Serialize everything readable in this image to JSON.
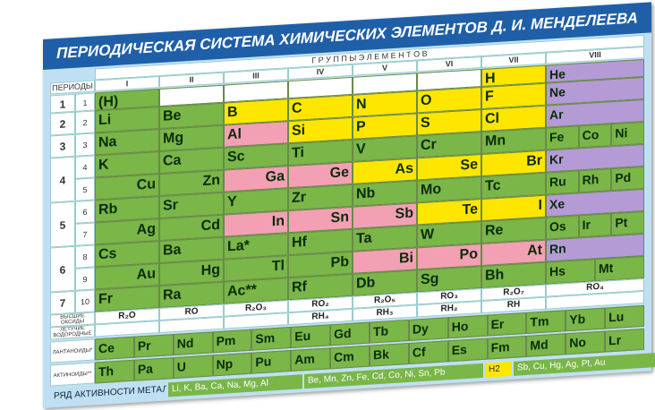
{
  "header": {
    "title": "ПЕРИОДИЧЕСКАЯ СИСТЕМА ХИМИЧЕСКИХ ЭЛЕМЕНТОВ Д. И. МЕНДЕЛЕЕВА",
    "groups_label": "Г Р У П П Ы   Э Л Е М Е Н Т О В",
    "periods_label": "ПЕРИОДЫ"
  },
  "groups": [
    "I",
    "II",
    "III",
    "IV",
    "V",
    "VI",
    "VII",
    "VIII"
  ],
  "periods": [
    "1",
    "2",
    "3",
    "4",
    "5",
    "6",
    "7"
  ],
  "rows": [
    {
      "number": "1",
      "cells": [
        "(H)",
        null,
        null,
        null,
        null,
        null,
        "H",
        [
          "He"
        ]
      ],
      "colors": [
        "#7ab648",
        null,
        null,
        null,
        null,
        null,
        "#ffe600",
        "#b49bd6"
      ]
    },
    {
      "number": "2",
      "cells": [
        "Li",
        "Be",
        "B",
        "C",
        "N",
        "O",
        "F",
        [
          "Ne"
        ]
      ],
      "colors": [
        "#7ab648",
        "#7ab648",
        "#ffe600",
        "#ffe600",
        "#ffe600",
        "#ffe600",
        "#ffe600",
        "#b49bd6"
      ]
    },
    {
      "number": "3",
      "cells": [
        "Na",
        "Mg",
        "Al",
        "Si",
        "P",
        "S",
        "Cl",
        [
          "Ar"
        ]
      ],
      "colors": [
        "#7ab648",
        "#7ab648",
        "#f3a0b5",
        "#ffe600",
        "#ffe600",
        "#ffe600",
        "#ffe600",
        "#b49bd6"
      ]
    },
    {
      "number": "4",
      "cells": [
        "K",
        "Ca",
        "Sc",
        "Ti",
        "V",
        "Cr",
        "Mn",
        [
          "Fe",
          "Co",
          "Ni"
        ]
      ],
      "colors": [
        "#7ab648",
        "#7ab648",
        "#7ab648",
        "#7ab648",
        "#7ab648",
        "#7ab648",
        "#7ab648",
        "#7ab648"
      ]
    },
    {
      "number": "5",
      "cells": [
        "Cu",
        "Zn",
        "Ga",
        "Ge",
        "As",
        "Se",
        "Br",
        [
          "Kr"
        ]
      ],
      "colors": [
        "#7ab648",
        "#7ab648",
        "#f3a0b5",
        "#f3a0b5",
        "#ffe600",
        "#ffe600",
        "#ffe600",
        "#b49bd6"
      ]
    },
    {
      "number": "6",
      "cells": [
        "Rb",
        "Sr",
        "Y",
        "Zr",
        "Nb",
        "Mo",
        "Tc",
        [
          "Ru",
          "Rh",
          "Pd"
        ]
      ],
      "colors": [
        "#7ab648",
        "#7ab648",
        "#7ab648",
        "#7ab648",
        "#7ab648",
        "#7ab648",
        "#7ab648",
        "#7ab648"
      ]
    },
    {
      "number": "7",
      "cells": [
        "Ag",
        "Cd",
        "In",
        "Sn",
        "Sb",
        "Te",
        "I",
        [
          "Xe"
        ]
      ],
      "colors": [
        "#7ab648",
        "#7ab648",
        "#f3a0b5",
        "#f3a0b5",
        "#f3a0b5",
        "#ffe600",
        "#ffe600",
        "#b49bd6"
      ]
    },
    {
      "number": "8",
      "cells": [
        "Cs",
        "Ba",
        "La*",
        "Hf",
        "Ta",
        "W",
        "Re",
        [
          "Os",
          "Ir",
          "Pt"
        ]
      ],
      "colors": [
        "#7ab648",
        "#7ab648",
        "#7ab648",
        "#7ab648",
        "#7ab648",
        "#7ab648",
        "#7ab648",
        "#7ab648"
      ]
    },
    {
      "number": "9",
      "cells": [
        "Au",
        "Hg",
        "Tl",
        "Pb",
        "Bi",
        "Po",
        "At",
        [
          "Rn"
        ]
      ],
      "colors": [
        "#7ab648",
        "#7ab648",
        "#7ab648",
        "#7ab648",
        "#f3a0b5",
        "#f3a0b5",
        "#f3a0b5",
        "#b49bd6"
      ]
    },
    {
      "number": "10",
      "cells": [
        "Fr",
        "Ra",
        "Ac**",
        "Rf",
        "Db",
        "Sg",
        "Bh",
        [
          "Hs",
          "Mt"
        ]
      ],
      "colors": [
        "#7ab648",
        "#7ab648",
        "#7ab648",
        "#7ab648",
        "#7ab648",
        "#7ab648",
        "#7ab648",
        "#7ab648"
      ]
    }
  ],
  "oxides": {
    "label": "ВЫСШИЕ ОКСИДЫ",
    "formulas": [
      "R₂O",
      "RO",
      "R₂O₃",
      "RO₂",
      "R₂O₅",
      "RO₃",
      "R₂O₇",
      "RO₄"
    ]
  },
  "hydrides": {
    "label": "ЛЕТУЧИЕ ВОДОРОДНЫЕ СОЕДИНЕНИЯ",
    "formulas": [
      null,
      null,
      null,
      "RH₄",
      "RH₃",
      "RH₂",
      "RH",
      null
    ]
  },
  "lanthanides": {
    "label": "ЛАНТАНОИДЫ*",
    "elements": [
      "Ce",
      "Pr",
      "Nd",
      "Pm",
      "Sm",
      "Eu",
      "Gd",
      "Tb",
      "Dy",
      "Ho",
      "Er",
      "Tm",
      "Yb",
      "Lu"
    ]
  },
  "actinides": {
    "label": "АКТИНОИДЫ**",
    "elements": [
      "Th",
      "Pa",
      "U",
      "Np",
      "Pu",
      "Am",
      "Cm",
      "Bk",
      "Cf",
      "Es",
      "Fm",
      "Md",
      "No",
      "Lr"
    ]
  },
  "activity_series": {
    "label": "РЯД АКТИВНОСТИ МЕТАЛЛОВ:",
    "groups": [
      "Li, K, Ba, Ca, Na, Mg, Al",
      "Be, Mn, Zn, Fe, Cd, Co, Ni, Sn, Pb",
      "H2",
      "Sb, Cu, Hg, Ag, Pt, Au"
    ]
  }
}
